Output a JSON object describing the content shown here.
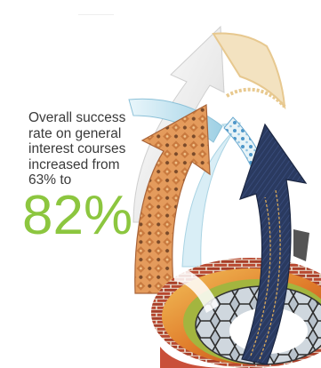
{
  "stat": {
    "lines": [
      "Overall success",
      "rate on general",
      "interest courses",
      "increased from",
      "63% to"
    ],
    "highlight": "82%"
  },
  "colors": {
    "highlight": "#8cc63f",
    "text": "#3a3a3a",
    "denim": "#2d3d63",
    "quilt": "#d9874a",
    "paper": "#f3ecdc",
    "brick": "#b8472f",
    "glass": "#bfe3ee"
  },
  "art": {
    "subject": "collage of textured arrows (paper, quilted fabric, glass, denim) sweeping upward out of circular textured rings (brick, hexagonal tile, leaves)"
  }
}
